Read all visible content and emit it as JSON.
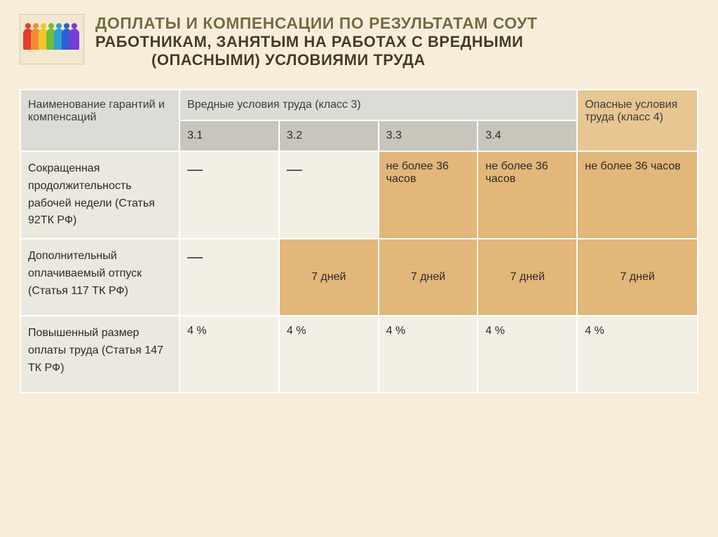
{
  "colors": {
    "slide_bg": "#f7edd9",
    "header_grey": "#dcdcd6",
    "sub_grey": "#c8c6bc",
    "row_label_bg": "#eae8df",
    "cell_light": "#f2efe5",
    "cell_accent": "#e3b679",
    "danger_header": "#e7c691",
    "border": "#ffffff",
    "title_accent": "#7a6a3a",
    "title_dark": "#4a3a1a"
  },
  "icon_people_colors": [
    "#e63b2e",
    "#f08c2e",
    "#f2c72e",
    "#6bbf3b",
    "#2e9ed6",
    "#2e5fd6",
    "#7a3bd6"
  ],
  "title": {
    "line1": "ДОПЛАТЫ  И КОМПЕНСАЦИИ ПО РЕЗУЛЬТАТАМ СОУТ",
    "line2": "РАБОТНИКАМ, ЗАНЯТЫМ НА РАБОТАХ С ВРЕДНЫМИ",
    "line3": "(ОПАСНЫМИ) УСЛОВИЯМИ ТРУДА"
  },
  "table": {
    "header": {
      "name": "Наименование гарантий и компенсаций",
      "harmful": "Вредные условия труда (класс 3)",
      "dangerous": "Опасные условия труда (класс 4)",
      "sub": [
        "3.1",
        "3.2",
        "3.3",
        "3.4"
      ]
    },
    "rows": [
      {
        "label": "Сокращенная продолжительность рабочей недели (Статья 92ТК РФ)",
        "cells": [
          {
            "text": "—",
            "style": "light",
            "align": "center"
          },
          {
            "text": "—",
            "style": "light",
            "align": "center"
          },
          {
            "text": "не более 36 часов",
            "style": "dark",
            "align": "left"
          },
          {
            "text": "не более 36 часов",
            "style": "dark",
            "align": "left"
          },
          {
            "text": "не более 36 часов",
            "style": "dark",
            "align": "left"
          }
        ]
      },
      {
        "label": "Дополнительный оплачиваемый отпуск (Статья 117 ТК РФ)",
        "cells": [
          {
            "text": "—",
            "style": "light",
            "align": "center"
          },
          {
            "text": "7 дней",
            "style": "dark",
            "align": "center"
          },
          {
            "text": "7 дней",
            "style": "dark",
            "align": "center"
          },
          {
            "text": "7 дней",
            "style": "dark",
            "align": "center"
          },
          {
            "text": "7 дней",
            "style": "dark",
            "align": "center"
          }
        ]
      },
      {
        "label": "Повышенный  размер оплаты труда\n(Статья 147 ТК РФ)",
        "cells": [
          {
            "text": "4 %",
            "style": "light",
            "align": "center"
          },
          {
            "text": "4 %",
            "style": "light",
            "align": "center"
          },
          {
            "text": "4 %",
            "style": "light",
            "align": "center"
          },
          {
            "text": "4 %",
            "style": "light",
            "align": "center"
          },
          {
            "text": "4 %",
            "style": "light",
            "align": "center"
          }
        ]
      }
    ]
  }
}
